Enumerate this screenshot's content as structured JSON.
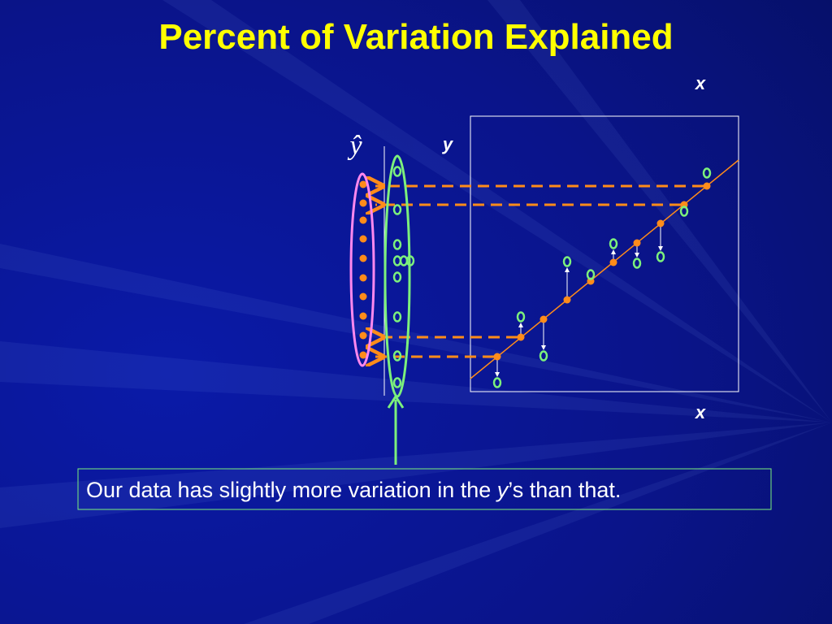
{
  "title": "Percent of Variation Explained",
  "labels": {
    "x_top": "x",
    "y_hat": "ŷ",
    "y": "y",
    "x_bottom": "x"
  },
  "caption": {
    "before": "Our data has slightly more variation in the ",
    "italic": "y",
    "after": "’s than that."
  }
}
